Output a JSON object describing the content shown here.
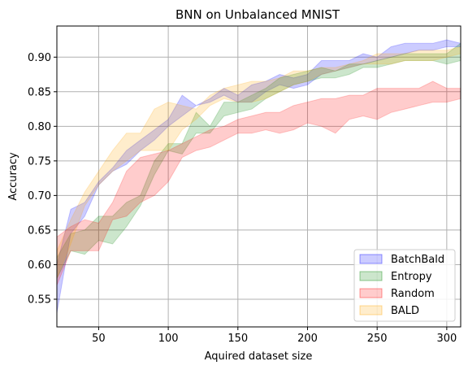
{
  "chart_data": {
    "type": "area",
    "title": "BNN on Unbalanced MNIST",
    "xlabel": "Aquired dataset size",
    "ylabel": "Accuracy",
    "xlim": [
      20,
      310
    ],
    "ylim": [
      0.51,
      0.945
    ],
    "xticks": [
      50,
      100,
      150,
      200,
      250,
      300
    ],
    "yticks": [
      0.55,
      0.6,
      0.65,
      0.7,
      0.75,
      0.8,
      0.85,
      0.9
    ],
    "grid": true,
    "legend_position": "lower-right",
    "x": [
      20,
      30,
      40,
      50,
      60,
      70,
      80,
      90,
      100,
      110,
      120,
      130,
      140,
      150,
      160,
      170,
      180,
      190,
      200,
      210,
      220,
      230,
      240,
      250,
      260,
      270,
      280,
      290,
      300,
      310
    ],
    "series": [
      {
        "name": "BatchBald",
        "color": "#0000ff",
        "lower": [
          0.53,
          0.645,
          0.67,
          0.715,
          0.735,
          0.745,
          0.765,
          0.78,
          0.8,
          0.815,
          0.83,
          0.835,
          0.845,
          0.835,
          0.835,
          0.85,
          0.86,
          0.855,
          0.86,
          0.875,
          0.88,
          0.885,
          0.89,
          0.895,
          0.9,
          0.905,
          0.91,
          0.91,
          0.915,
          0.915
        ],
        "upper": [
          0.6,
          0.68,
          0.69,
          0.72,
          0.74,
          0.765,
          0.78,
          0.795,
          0.81,
          0.845,
          0.83,
          0.84,
          0.855,
          0.845,
          0.86,
          0.865,
          0.875,
          0.87,
          0.875,
          0.895,
          0.895,
          0.895,
          0.905,
          0.9,
          0.915,
          0.92,
          0.92,
          0.92,
          0.925,
          0.92
        ]
      },
      {
        "name": "Entropy",
        "color": "#008000",
        "lower": [
          0.58,
          0.62,
          0.615,
          0.635,
          0.63,
          0.655,
          0.685,
          0.73,
          0.765,
          0.76,
          0.79,
          0.79,
          0.815,
          0.82,
          0.825,
          0.84,
          0.85,
          0.86,
          0.865,
          0.87,
          0.87,
          0.875,
          0.885,
          0.885,
          0.89,
          0.895,
          0.895,
          0.895,
          0.89,
          0.895
        ],
        "upper": [
          0.61,
          0.645,
          0.65,
          0.67,
          0.67,
          0.69,
          0.7,
          0.75,
          0.775,
          0.775,
          0.82,
          0.8,
          0.835,
          0.835,
          0.845,
          0.855,
          0.87,
          0.875,
          0.88,
          0.885,
          0.88,
          0.89,
          0.89,
          0.895,
          0.9,
          0.905,
          0.905,
          0.905,
          0.905,
          0.92
        ]
      },
      {
        "name": "Random",
        "color": "#ff0000",
        "lower": [
          0.57,
          0.62,
          0.62,
          0.62,
          0.665,
          0.67,
          0.69,
          0.7,
          0.72,
          0.755,
          0.765,
          0.77,
          0.78,
          0.79,
          0.79,
          0.795,
          0.79,
          0.795,
          0.805,
          0.8,
          0.79,
          0.81,
          0.815,
          0.81,
          0.82,
          0.825,
          0.83,
          0.835,
          0.835,
          0.84
        ],
        "upper": [
          0.64,
          0.655,
          0.665,
          0.66,
          0.69,
          0.735,
          0.755,
          0.76,
          0.765,
          0.775,
          0.785,
          0.795,
          0.8,
          0.81,
          0.815,
          0.82,
          0.82,
          0.83,
          0.835,
          0.84,
          0.84,
          0.845,
          0.845,
          0.855,
          0.855,
          0.855,
          0.855,
          0.865,
          0.855,
          0.855
        ]
      },
      {
        "name": "BALD",
        "color": "#ffa500",
        "lower": [
          0.58,
          0.63,
          0.685,
          0.715,
          0.735,
          0.75,
          0.765,
          0.765,
          0.765,
          0.795,
          0.81,
          0.83,
          0.84,
          0.835,
          0.835,
          0.84,
          0.85,
          0.86,
          0.865,
          0.875,
          0.88,
          0.885,
          0.89,
          0.89,
          0.89,
          0.895,
          0.895,
          0.895,
          0.9,
          0.905
        ],
        "upper": [
          0.62,
          0.665,
          0.705,
          0.735,
          0.765,
          0.79,
          0.79,
          0.825,
          0.835,
          0.83,
          0.825,
          0.845,
          0.855,
          0.86,
          0.865,
          0.865,
          0.87,
          0.88,
          0.88,
          0.885,
          0.885,
          0.89,
          0.895,
          0.905,
          0.905,
          0.905,
          0.91,
          0.91,
          0.91,
          0.915
        ]
      }
    ]
  }
}
